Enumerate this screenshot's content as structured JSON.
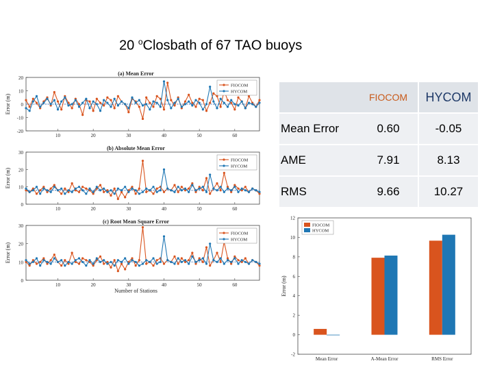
{
  "title_main": "20 ",
  "title_deg": "o",
  "title_rest": "Closbath of 67 TAO buoys",
  "colors": {
    "fiocom": "#d9541e",
    "hycom": "#1f77b4",
    "mean_line": "#6b8fc2"
  },
  "table": {
    "header": [
      "",
      "FIOCOM",
      "HYCOM"
    ],
    "rows": [
      {
        "label": "Mean Error",
        "fiocom": "0.60",
        "hycom": "-0.05"
      },
      {
        "label": "AME",
        "fiocom": "7.91",
        "hycom": "8.13"
      },
      {
        "label": "RMS",
        "fiocom": "9.66",
        "hycom": "10.27"
      }
    ]
  },
  "chart_data": [
    {
      "type": "line",
      "title": "(a) Mean Error",
      "xlabel": "",
      "ylabel": "Error (m)",
      "xlim": [
        1,
        67
      ],
      "ylim": [
        -20,
        20
      ],
      "yticks": [
        -20,
        -10,
        0,
        10,
        20
      ],
      "xticks": [
        10,
        20,
        30,
        40,
        50,
        60
      ],
      "legend": [
        "FIOCOM",
        "HYCOM"
      ],
      "legend_position": "top-right",
      "series": [
        {
          "name": "FIOCOM",
          "values": [
            3,
            -2,
            4,
            1,
            -3,
            2,
            5,
            -1,
            9,
            2,
            -4,
            6,
            1,
            -3,
            4,
            0,
            -8,
            3,
            2,
            -5,
            4,
            1,
            -1,
            5,
            3,
            -3,
            6,
            2,
            0,
            -6,
            4,
            2,
            -2,
            -11,
            5,
            1,
            -2,
            6,
            4,
            -4,
            16,
            3,
            -1,
            5,
            -3,
            2,
            7,
            1,
            -2,
            4,
            3,
            -5,
            1,
            8,
            6,
            -2,
            10,
            3,
            1,
            -4,
            5,
            2,
            -3,
            6,
            1,
            -2,
            3
          ]
        },
        {
          "name": "HYCOM",
          "values": [
            -3,
            -5,
            2,
            6,
            -2,
            1,
            4,
            0,
            3,
            -4,
            2,
            5,
            -1,
            0,
            3,
            -2,
            1,
            4,
            -3,
            2,
            0,
            -5,
            3,
            1,
            -2,
            4,
            -1,
            2,
            0,
            -3,
            5,
            1,
            3,
            -1,
            0,
            -4,
            2,
            1,
            -2,
            17,
            3,
            -3,
            1,
            4,
            -2,
            0,
            2,
            -1,
            3,
            1,
            -4,
            0,
            13,
            2,
            -3,
            4,
            1,
            -2,
            3,
            0,
            -1,
            2,
            -3,
            1,
            0,
            -2,
            1
          ]
        }
      ],
      "mean_line": 0
    },
    {
      "type": "line",
      "title": "(b) Absolute Mean Error",
      "xlabel": "",
      "ylabel": "Error (m)",
      "xlim": [
        1,
        67
      ],
      "ylim": [
        0,
        30
      ],
      "yticks": [
        0,
        10,
        20,
        30
      ],
      "xticks": [
        10,
        20,
        30,
        40,
        50,
        60
      ],
      "legend": [
        "FIOCOM",
        "HYCOM"
      ],
      "legend_position": "top-right",
      "series": [
        {
          "name": "FIOCOM",
          "values": [
            8,
            7,
            9,
            6,
            8,
            10,
            7,
            9,
            11,
            8,
            6,
            9,
            7,
            12,
            8,
            7,
            10,
            9,
            8,
            6,
            9,
            11,
            7,
            8,
            5,
            9,
            3,
            7,
            4,
            8,
            10,
            6,
            9,
            25,
            7,
            8,
            6,
            9,
            10,
            7,
            9,
            8,
            11,
            7,
            10,
            8,
            9,
            12,
            7,
            10,
            8,
            15,
            6,
            9,
            12,
            8,
            18,
            10,
            7,
            11,
            9,
            8,
            10,
            7,
            9,
            8,
            6
          ]
        },
        {
          "name": "HYCOM",
          "values": [
            9,
            7,
            8,
            10,
            6,
            9,
            8,
            7,
            10,
            8,
            9,
            6,
            8,
            7,
            9,
            10,
            8,
            6,
            9,
            7,
            10,
            8,
            9,
            7,
            8,
            6,
            9,
            8,
            10,
            7,
            9,
            8,
            6,
            7,
            9,
            8,
            10,
            7,
            8,
            20,
            9,
            8,
            7,
            10,
            8,
            9,
            7,
            11,
            8,
            9,
            10,
            7,
            17,
            9,
            8,
            10,
            7,
            9,
            8,
            10,
            7,
            9,
            8,
            7,
            9,
            8,
            7
          ]
        }
      ],
      "mean_line": 8
    },
    {
      "type": "line",
      "title": "(c) Root Mean Square Error",
      "xlabel": "Number of Stations",
      "ylabel": "Error (m)",
      "xlim": [
        1,
        67
      ],
      "ylim": [
        0,
        30
      ],
      "yticks": [
        0,
        10,
        20,
        30
      ],
      "xticks": [
        10,
        20,
        30,
        40,
        50,
        60
      ],
      "legend": [
        "FIOCOM",
        "HYCOM"
      ],
      "legend_position": "top-right",
      "series": [
        {
          "name": "FIOCOM",
          "values": [
            10,
            8,
            11,
            9,
            10,
            12,
            9,
            11,
            14,
            10,
            8,
            11,
            9,
            15,
            10,
            9,
            12,
            11,
            10,
            8,
            11,
            13,
            9,
            10,
            7,
            11,
            5,
            9,
            6,
            10,
            12,
            8,
            11,
            29,
            9,
            10,
            8,
            11,
            12,
            9,
            11,
            10,
            13,
            9,
            12,
            10,
            11,
            15,
            9,
            12,
            10,
            18,
            8,
            11,
            15,
            10,
            21,
            12,
            9,
            13,
            11,
            10,
            12,
            9,
            11,
            10,
            8
          ]
        },
        {
          "name": "HYCOM",
          "values": [
            11,
            9,
            10,
            12,
            8,
            11,
            10,
            9,
            12,
            10,
            11,
            8,
            10,
            9,
            11,
            12,
            10,
            8,
            11,
            9,
            12,
            10,
            11,
            9,
            10,
            8,
            11,
            10,
            12,
            9,
            11,
            10,
            8,
            9,
            11,
            10,
            12,
            9,
            10,
            24,
            11,
            10,
            9,
            12,
            10,
            11,
            9,
            13,
            10,
            11,
            12,
            9,
            20,
            11,
            10,
            12,
            9,
            11,
            10,
            12,
            9,
            11,
            10,
            9,
            11,
            10,
            9
          ]
        }
      ],
      "mean_line": 10
    },
    {
      "type": "bar",
      "title": "",
      "xlabel": "",
      "ylabel": "Error (m)",
      "categories": [
        "Mean Error",
        "A-Mean Error",
        "RMS Error"
      ],
      "ylim": [
        -2,
        12
      ],
      "yticks": [
        -2,
        0,
        2,
        4,
        6,
        8,
        10,
        12
      ],
      "legend": [
        "FIOCOM",
        "HYCOM"
      ],
      "legend_position": "top-left",
      "series": [
        {
          "name": "FIOCOM",
          "values": [
            0.6,
            7.91,
            9.66
          ]
        },
        {
          "name": "HYCOM",
          "values": [
            -0.05,
            8.13,
            10.27
          ]
        }
      ]
    }
  ]
}
